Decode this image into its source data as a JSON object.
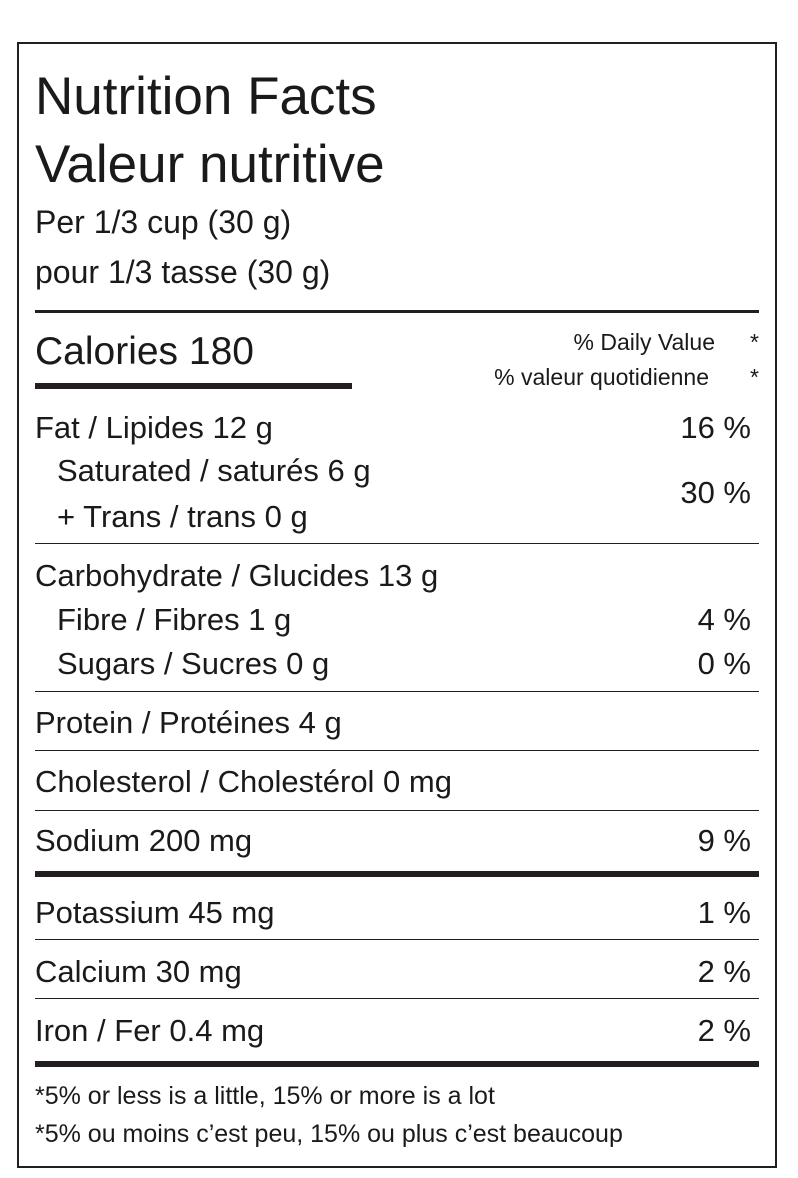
{
  "title_en": "Nutrition Facts",
  "title_fr": "Valeur nutritive",
  "serving_en": "Per 1/3 cup (30 g)",
  "serving_fr": "pour 1/3 tasse (30 g)",
  "calories": "Calories 180",
  "dv_en": "% Daily Value",
  "dv_fr": "% valeur quotidienne",
  "asterisk": "*",
  "rows": {
    "fat": {
      "label": "Fat / Lipides 12 g",
      "pct": "16 %"
    },
    "saturated": {
      "label": "Saturated / saturés 6 g"
    },
    "trans": {
      "label": "+ Trans / trans 0 g",
      "pct": "30 %"
    },
    "carb": {
      "label": "Carbohydrate / Glucides 13 g"
    },
    "fibre": {
      "label": "Fibre / Fibres 1 g",
      "pct": "4 %"
    },
    "sugars": {
      "label": "Sugars / Sucres 0 g",
      "pct": "0 %"
    },
    "protein": {
      "label": "Protein / Protéines 4 g"
    },
    "cholesterol": {
      "label": "Cholesterol / Cholestérol 0 mg"
    },
    "sodium": {
      "label": "Sodium 200 mg",
      "pct": "9 %"
    },
    "potassium": {
      "label": "Potassium 45 mg",
      "pct": "1 %"
    },
    "calcium": {
      "label": "Calcium 30 mg",
      "pct": "2 %"
    },
    "iron": {
      "label": "Iron / Fer 0.4 mg",
      "pct": "2 %"
    }
  },
  "footnote_en": "*5% or less is a little, 15% or more is a lot",
  "footnote_fr": "*5% ou moins c’est peu, 15% ou plus c’est beaucoup"
}
